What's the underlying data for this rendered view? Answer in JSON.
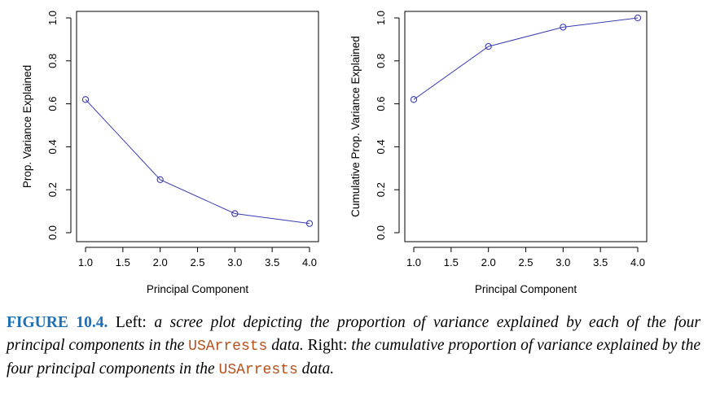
{
  "chart_data": [
    {
      "type": "line",
      "xlabel": "Principal Component",
      "ylabel": "Prop. Variance Explained",
      "x": [
        1.0,
        2.0,
        3.0,
        4.0
      ],
      "series": [
        {
          "values": [
            0.62,
            0.247,
            0.089,
            0.043
          ]
        }
      ],
      "xlim": [
        1.0,
        4.0
      ],
      "ylim": [
        0.0,
        1.0
      ],
      "xticks": [
        "1.0",
        "1.5",
        "2.0",
        "2.5",
        "3.0",
        "3.5",
        "4.0"
      ],
      "yticks": [
        "0.0",
        "0.2",
        "0.4",
        "0.6",
        "0.8",
        "1.0"
      ],
      "markers": "open-circle",
      "color": "#3b3bb0",
      "grid": false
    },
    {
      "type": "line",
      "xlabel": "Principal Component",
      "ylabel": "Cumulative Prop. Variance Explained",
      "x": [
        1.0,
        2.0,
        3.0,
        4.0
      ],
      "series": [
        {
          "values": [
            0.62,
            0.867,
            0.957,
            1.0
          ]
        }
      ],
      "xlim": [
        1.0,
        4.0
      ],
      "ylim": [
        0.0,
        1.0
      ],
      "xticks": [
        "1.0",
        "1.5",
        "2.0",
        "2.5",
        "3.0",
        "3.5",
        "4.0"
      ],
      "yticks": [
        "0.0",
        "0.2",
        "0.4",
        "0.6",
        "0.8",
        "1.0"
      ],
      "markers": "open-circle",
      "color": "#3b3bb0",
      "grid": false
    }
  ],
  "caption": {
    "label": "FIGURE 10.4.",
    "w1": " Left: ",
    "i1": "a scree plot depicting the proportion of variance explained by each of the four principal components in the ",
    "m1": "USArrests",
    "i2": " data.",
    "w2": " Right: ",
    "i3": "the cumulative proportion of variance explained by the four principal components in the ",
    "m2": "USArrests",
    "i4": " data."
  }
}
